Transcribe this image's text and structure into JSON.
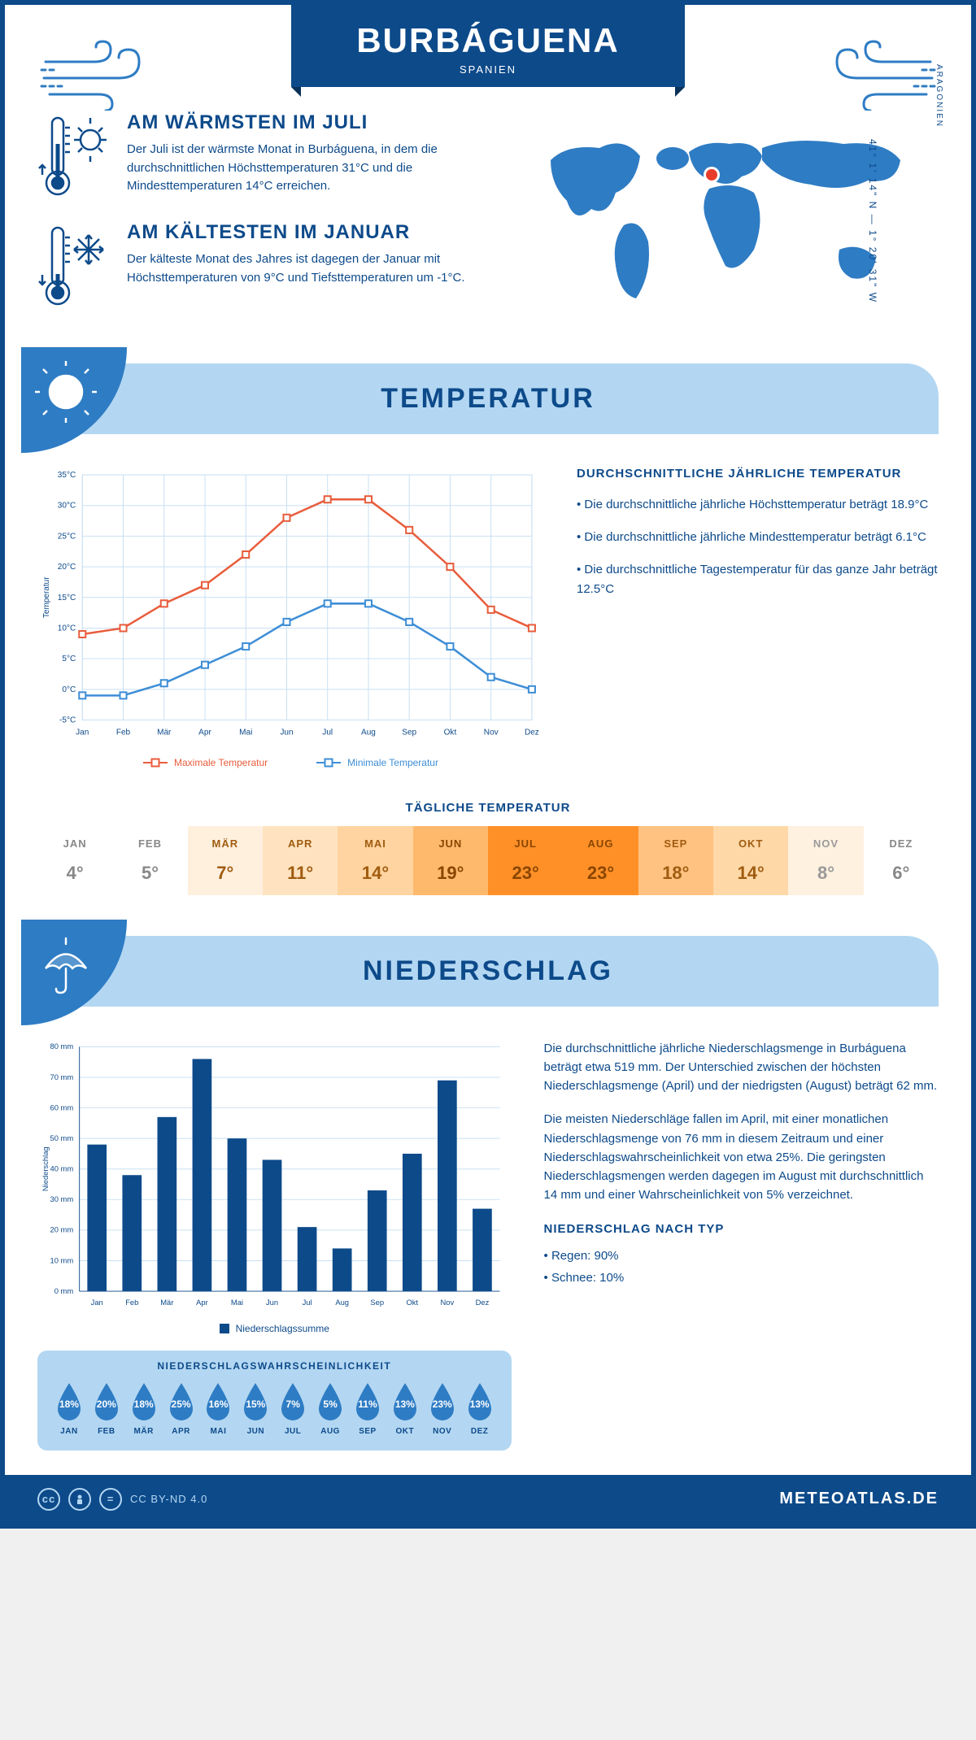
{
  "header": {
    "title": "BURBÁGUENA",
    "country": "SPANIEN",
    "coords": "41° 1' 14\" N — 1° 20' 31\" W",
    "region": "ARAGONIEN"
  },
  "colors": {
    "primary": "#0d4a8a",
    "accent": "#2e7cc4",
    "light_blue": "#b3d7f2",
    "max_line": "#e85d3c",
    "min_line": "#3e8ed6",
    "bar_fill": "#0d4a8a"
  },
  "warmest": {
    "title": "AM WÄRMSTEN IM JULI",
    "body": "Der Juli ist der wärmste Monat in Burbáguena, in dem die durchschnittlichen Höchsttemperaturen 31°C und die Mindesttemperaturen 14°C erreichen."
  },
  "coldest": {
    "title": "AM KÄLTESTEN IM JANUAR",
    "body": "Der kälteste Monat des Jahres ist dagegen der Januar mit Höchsttemperaturen von 9°C und Tiefsttemperaturen um -1°C."
  },
  "sections": {
    "temperature": "TEMPERATUR",
    "precipitation": "NIEDERSCHLAG"
  },
  "temp_chart": {
    "type": "line",
    "months": [
      "Jan",
      "Feb",
      "Mär",
      "Apr",
      "Mai",
      "Jun",
      "Jul",
      "Aug",
      "Sep",
      "Okt",
      "Nov",
      "Dez"
    ],
    "max_series": [
      9,
      10,
      14,
      17,
      22,
      28,
      31,
      31,
      26,
      20,
      13,
      10
    ],
    "min_series": [
      -1,
      -1,
      1,
      4,
      7,
      11,
      14,
      14,
      11,
      7,
      2,
      0
    ],
    "ylim": [
      -5,
      35
    ],
    "ytick_step": 5,
    "ylabel": "Temperatur",
    "max_label": "Maximale Temperatur",
    "min_label": "Minimale Temperatur"
  },
  "temp_info": {
    "heading": "DURCHSCHNITTLICHE JÄHRLICHE TEMPERATUR",
    "b1": "• Die durchschnittliche jährliche Höchsttemperatur beträgt 18.9°C",
    "b2": "• Die durchschnittliche jährliche Mindesttemperatur beträgt 6.1°C",
    "b3": "• Die durchschnittliche Tagestemperatur für das ganze Jahr beträgt 12.5°C"
  },
  "daily_temp": {
    "heading": "TÄGLICHE TEMPERATUR",
    "months": [
      "JAN",
      "FEB",
      "MÄR",
      "APR",
      "MAI",
      "JUN",
      "JUL",
      "AUG",
      "SEP",
      "OKT",
      "NOV",
      "DEZ"
    ],
    "values": [
      "4°",
      "5°",
      "7°",
      "11°",
      "14°",
      "19°",
      "23°",
      "23°",
      "18°",
      "14°",
      "8°",
      "6°"
    ],
    "bg_colors": [
      "#ffffff",
      "#ffffff",
      "#fff0de",
      "#ffe3c0",
      "#ffd4a0",
      "#ffb96d",
      "#ff9028",
      "#ff9028",
      "#ffc281",
      "#ffd8a8",
      "#fff1e0",
      "#ffffff"
    ],
    "text_colors": [
      "#888888",
      "#888888",
      "#a05c10",
      "#a05c10",
      "#a05c10",
      "#8a4600",
      "#8a4600",
      "#8a4600",
      "#a05c10",
      "#a05c10",
      "#999999",
      "#888888"
    ]
  },
  "precip_chart": {
    "type": "bar",
    "months": [
      "Jan",
      "Feb",
      "Mär",
      "Apr",
      "Mai",
      "Jun",
      "Jul",
      "Aug",
      "Sep",
      "Okt",
      "Nov",
      "Dez"
    ],
    "values": [
      48,
      38,
      57,
      76,
      50,
      43,
      21,
      14,
      33,
      45,
      69,
      27
    ],
    "ylim": [
      0,
      80
    ],
    "ytick_step": 10,
    "ylabel": "Niederschlag",
    "legend": "Niederschlagssumme"
  },
  "precip_text": {
    "p1": "Die durchschnittliche jährliche Niederschlagsmenge in Burbáguena beträgt etwa 519 mm. Der Unterschied zwischen der höchsten Niederschlagsmenge (April) und der niedrigsten (August) beträgt 62 mm.",
    "p2": "Die meisten Niederschläge fallen im April, mit einer monatlichen Niederschlagsmenge von 76 mm in diesem Zeitraum und einer Niederschlagswahrscheinlichkeit von etwa 25%. Die geringsten Niederschlagsmengen werden dagegen im August mit durchschnittlich 14 mm und einer Wahrscheinlichkeit von 5% verzeichnet.",
    "type_heading": "NIEDERSCHLAG NACH TYP",
    "rain": "• Regen: 90%",
    "snow": "• Schnee: 10%"
  },
  "precip_prob": {
    "heading": "NIEDERSCHLAGSWAHRSCHEINLICHKEIT",
    "months": [
      "JAN",
      "FEB",
      "MÄR",
      "APR",
      "MAI",
      "JUN",
      "JUL",
      "AUG",
      "SEP",
      "OKT",
      "NOV",
      "DEZ"
    ],
    "values": [
      "18%",
      "20%",
      "18%",
      "25%",
      "16%",
      "15%",
      "7%",
      "5%",
      "11%",
      "13%",
      "23%",
      "13%"
    ]
  },
  "footer": {
    "license": "CC BY-ND 4.0",
    "site": "METEOATLAS.DE"
  }
}
